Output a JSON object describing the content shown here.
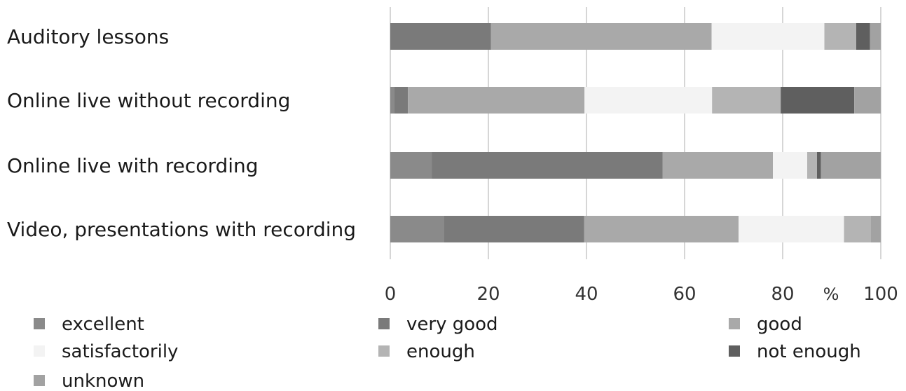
{
  "chart_data": {
    "type": "bar",
    "orientation": "horizontal",
    "stacked": true,
    "categories": [
      "Auditory lessons",
      "Online live without recording",
      "Online live with recording",
      "Video, presentations with recording"
    ],
    "series": [
      {
        "name": "excellent",
        "color": "#8a8a8a",
        "values": [
          0,
          0.8,
          8.5,
          11
        ]
      },
      {
        "name": "very good",
        "color": "#7a7a7a",
        "values": [
          20.5,
          2.8,
          47,
          28.5
        ]
      },
      {
        "name": "good",
        "color": "#a9a9a9",
        "values": [
          45,
          36,
          22.5,
          31.5
        ]
      },
      {
        "name": "satisfactorily",
        "color": "#f3f3f3",
        "values": [
          23,
          26,
          7,
          21.5
        ]
      },
      {
        "name": "enough",
        "color": "#b4b4b4",
        "values": [
          6.5,
          14,
          2,
          5.5
        ]
      },
      {
        "name": "not enough",
        "color": "#5f5f5f",
        "values": [
          2.8,
          15,
          0.8,
          0
        ]
      },
      {
        "name": "unknown",
        "color": "#a2a2a2",
        "values": [
          2.2,
          5.4,
          12.2,
          2
        ]
      }
    ],
    "x_ticks": [
      "0",
      "20",
      "40",
      "60",
      "80",
      "100"
    ],
    "xlim": [
      0,
      100
    ],
    "x_unit": "%",
    "grid": true,
    "legend_position": "bottom"
  }
}
